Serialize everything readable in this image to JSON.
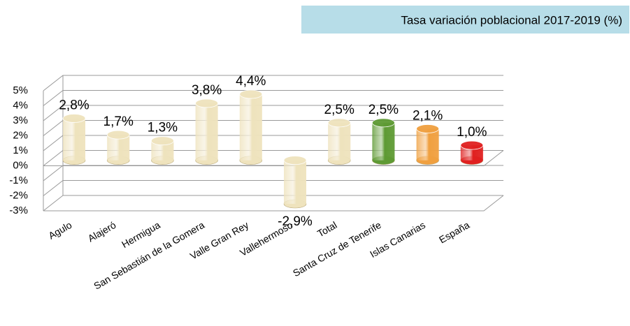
{
  "chart_data": {
    "type": "bar",
    "title": "Tasa variación poblacional 2017-2019 (%)",
    "categories": [
      "Agulo",
      "Alajeró",
      "Hermigua",
      "San Sebastián de la Gomera",
      "Valle Gran Rey",
      "Vallehermoso",
      "Total",
      "Santa Cruz de Tenerife",
      "Islas Canarias",
      "España"
    ],
    "values": [
      2.8,
      1.7,
      1.3,
      3.8,
      4.4,
      -2.9,
      2.5,
      2.5,
      2.1,
      1.0
    ],
    "value_labels": [
      "2,8%",
      "1,7%",
      "1,3%",
      "3,8%",
      "4,4%",
      "-2,9%",
      "2,5%",
      "2,5%",
      "2,1%",
      "1,0%"
    ],
    "colors": [
      "#efe3bd",
      "#efe3bd",
      "#efe3bd",
      "#efe3bd",
      "#efe3bd",
      "#efe3bd",
      "#efe3bd",
      "#5e9a34",
      "#f0a040",
      "#e02020"
    ],
    "ylim": [
      -3,
      5
    ],
    "yticks": [
      {
        "value": -3,
        "label": "-3%"
      },
      {
        "value": -2,
        "label": "-2%"
      },
      {
        "value": -1,
        "label": "-1%"
      },
      {
        "value": 0,
        "label": "0%"
      },
      {
        "value": 1,
        "label": "1%"
      },
      {
        "value": 2,
        "label": "2%"
      },
      {
        "value": 3,
        "label": "3%"
      },
      {
        "value": 4,
        "label": "4%"
      },
      {
        "value": 5,
        "label": "5%"
      }
    ],
    "grid": true
  }
}
